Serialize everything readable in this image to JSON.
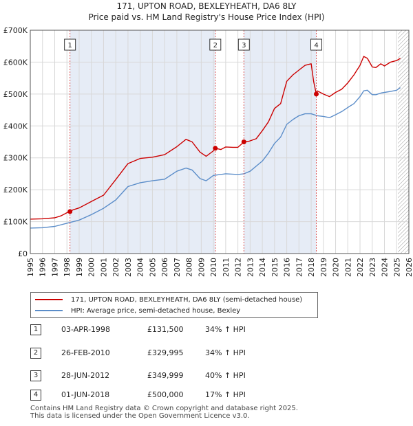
{
  "title_line1": "171, UPTON ROAD, BEXLEYHEATH, DA6 8LY",
  "title_line2": "Price paid vs. HM Land Registry's House Price Index (HPI)",
  "colors": {
    "property": "#cc0000",
    "hpi": "#5b8dc9",
    "marker_line": "#dd5555",
    "band": "#e6ecf6"
  },
  "legend": {
    "property_label": "171, UPTON ROAD, BEXLEYHEATH, DA6 8LY (semi-detached house)",
    "hpi_label": "HPI: Average price, semi-detached house, Bexley"
  },
  "transactions": [
    {
      "num": "1",
      "date": "03-APR-1998",
      "price": "£131,500",
      "hpi": "34% ↑ HPI"
    },
    {
      "num": "2",
      "date": "26-FEB-2010",
      "price": "£329,995",
      "hpi": "34% ↑ HPI"
    },
    {
      "num": "3",
      "date": "28-JUN-2012",
      "price": "£349,999",
      "hpi": "40% ↑ HPI"
    },
    {
      "num": "4",
      "date": "01-JUN-2018",
      "price": "£500,000",
      "hpi": "17% ↑ HPI"
    }
  ],
  "footer": {
    "line1": "Contains HM Land Registry data © Crown copyright and database right 2025.",
    "line2": "This data is licensed under the Open Government Licence v3.0."
  },
  "chart_data": {
    "type": "line",
    "title": "Price paid vs. HM Land Registry's House Price Index (HPI)",
    "xlim": [
      1995,
      2026
    ],
    "ylim": [
      0,
      700000
    ],
    "x_ticks": [
      1995,
      1996,
      1997,
      1998,
      1999,
      2000,
      2001,
      2002,
      2003,
      2004,
      2005,
      2006,
      2007,
      2008,
      2009,
      2010,
      2011,
      2012,
      2013,
      2014,
      2015,
      2016,
      2017,
      2018,
      2019,
      2020,
      2021,
      2022,
      2023,
      2024,
      2025,
      2026
    ],
    "y_ticks": [
      {
        "value": 0,
        "label": "£0"
      },
      {
        "value": 100000,
        "label": "£100K"
      },
      {
        "value": 200000,
        "label": "£200K"
      },
      {
        "value": 300000,
        "label": "£300K"
      },
      {
        "value": 400000,
        "label": "£400K"
      },
      {
        "value": 500000,
        "label": "£500K"
      },
      {
        "value": 600000,
        "label": "£600K"
      },
      {
        "value": 700000,
        "label": "£700K"
      }
    ],
    "grid": true,
    "forecast_from": 2025.1,
    "series": [
      {
        "name": "171, UPTON ROAD, BEXLEYHEATH, DA6 8LY (semi-detached house)",
        "x": [
          1995,
          1996,
          1997,
          1997.5,
          1998.0,
          1998.25,
          1998.5,
          1999,
          2000,
          2001,
          2002,
          2003,
          2004,
          2005,
          2006,
          2007,
          2007.75,
          2008.25,
          2008.9,
          2009.4,
          2010.0,
          2010.15,
          2010.6,
          2011,
          2011.6,
          2012.0,
          2012.5,
          2012.9,
          2013.5,
          2014,
          2014.5,
          2015,
          2015.5,
          2016,
          2016.5,
          2017,
          2017.5,
          2018.0,
          2018.2,
          2018.42,
          2018.5,
          2019,
          2019.5,
          2020,
          2020.5,
          2021,
          2021.5,
          2022,
          2022.3,
          2022.6,
          2023.0,
          2023.3,
          2023.7,
          2024,
          2024.5,
          2025.0,
          2025.3
        ],
        "y": [
          108000,
          109000,
          112000,
          118000,
          128000,
          131500,
          137000,
          143000,
          163000,
          183000,
          232000,
          282000,
          298000,
          302000,
          310000,
          335000,
          358000,
          350000,
          318000,
          305000,
          322000,
          329995,
          326000,
          334000,
          333000,
          333000,
          349999,
          352000,
          360000,
          385000,
          413000,
          455000,
          470000,
          540000,
          560000,
          575000,
          590000,
          595000,
          540000,
          500000,
          510000,
          500000,
          492000,
          505000,
          515000,
          535000,
          560000,
          590000,
          618000,
          612000,
          585000,
          583000,
          595000,
          588000,
          600000,
          605000,
          612000
        ]
      },
      {
        "name": "HPI: Average price, semi-detached house, Bexley",
        "x": [
          1995,
          1996,
          1997,
          1998,
          1999,
          2000,
          2001,
          2002,
          2003,
          2004,
          2005,
          2006,
          2007,
          2007.75,
          2008.25,
          2008.9,
          2009.4,
          2010,
          2011,
          2012,
          2012.5,
          2013,
          2014,
          2014.5,
          2015,
          2015.5,
          2016,
          2016.5,
          2017,
          2017.5,
          2018,
          2018.5,
          2019,
          2019.5,
          2020,
          2020.5,
          2021,
          2021.5,
          2022,
          2022.3,
          2022.6,
          2023.0,
          2023.3,
          2023.7,
          2024,
          2024.5,
          2025.0,
          2025.3
        ],
        "y": [
          80000,
          81000,
          85000,
          95000,
          105000,
          122000,
          142000,
          168000,
          210000,
          222000,
          228000,
          233000,
          258000,
          268000,
          262000,
          235000,
          228000,
          245000,
          250000,
          248000,
          250000,
          258000,
          290000,
          315000,
          345000,
          365000,
          405000,
          420000,
          432000,
          438000,
          438000,
          432000,
          430000,
          426000,
          435000,
          445000,
          458000,
          470000,
          492000,
          510000,
          512000,
          498000,
          498000,
          503000,
          505000,
          508000,
          512000,
          520000
        ]
      }
    ],
    "annotations": [
      {
        "label": "1",
        "x": 1998.25,
        "y": 131500
      },
      {
        "label": "2",
        "x": 2010.15,
        "y": 329995
      },
      {
        "label": "3",
        "x": 2012.49,
        "y": 349999
      },
      {
        "label": "4",
        "x": 2018.42,
        "y": 500000
      }
    ]
  }
}
